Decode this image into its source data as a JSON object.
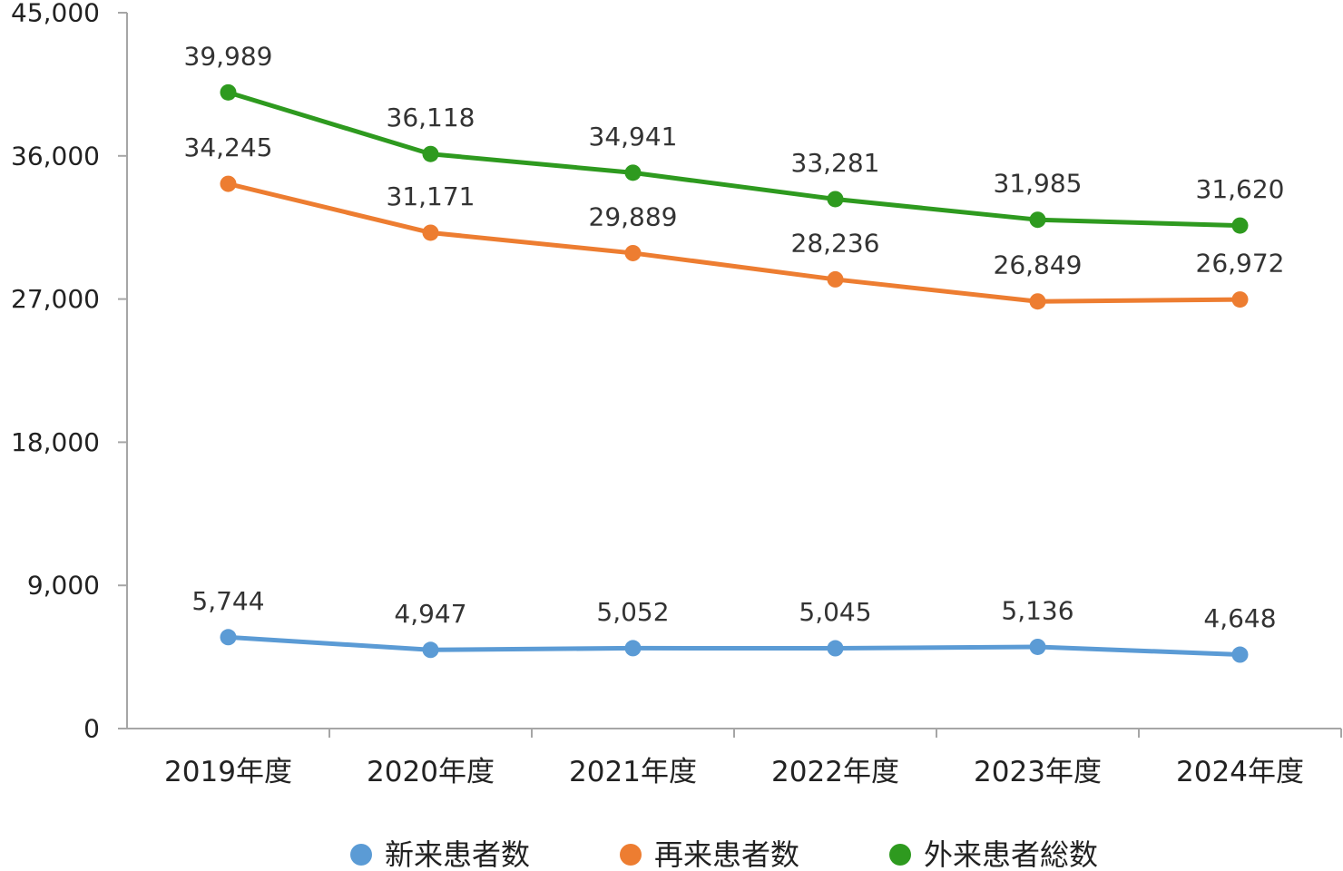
{
  "chart_data": {
    "type": "line",
    "categories": [
      "2019年度",
      "2020年度",
      "2021年度",
      "2022年度",
      "2023年度",
      "2024年度"
    ],
    "ylim": [
      0,
      45000
    ],
    "yticks": [
      0,
      9000,
      18000,
      27000,
      36000,
      45000
    ],
    "ytick_labels": [
      "0",
      "9,000",
      "18,000",
      "27,000",
      "36,000",
      "45,000"
    ],
    "grid": false,
    "legend_position": "bottom",
    "series": [
      {
        "name": "新来患者数",
        "color": "#5b9bd5",
        "values": [
          5744,
          4947,
          5052,
          5045,
          5136,
          4648
        ],
        "labels": [
          "5,744",
          "4,947",
          "5,052",
          "5,045",
          "5,136",
          "4,648"
        ]
      },
      {
        "name": "再来患者数",
        "color": "#ed7d31",
        "values": [
          34245,
          31171,
          29889,
          28236,
          26849,
          26972
        ],
        "labels": [
          "34,245",
          "31,171",
          "29,889",
          "28,236",
          "26,849",
          "26,972"
        ]
      },
      {
        "name": "外来患者総数",
        "color": "#2e9a1f",
        "values": [
          39989,
          36118,
          34941,
          33281,
          31985,
          31620
        ],
        "labels": [
          "39,989",
          "36,118",
          "34,941",
          "33,281",
          "31,985",
          "31,620"
        ]
      }
    ]
  }
}
